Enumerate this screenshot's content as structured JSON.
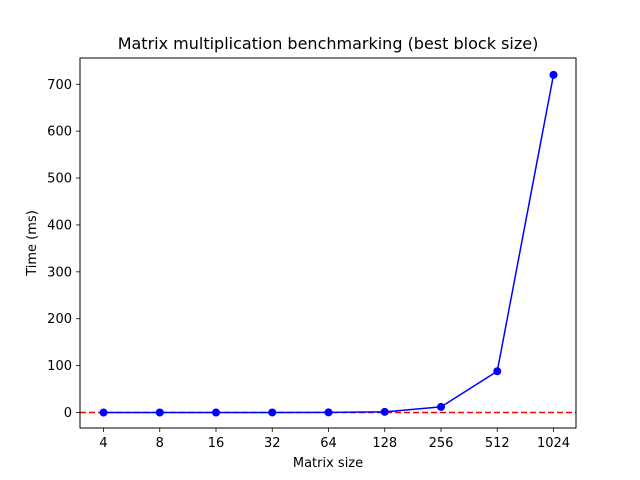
{
  "chart_data": {
    "type": "line",
    "title": "Matrix multiplication benchmarking (best block size)",
    "xlabel": "Matrix size",
    "ylabel": "Time (ms)",
    "categories": [
      "4",
      "8",
      "16",
      "32",
      "64",
      "128",
      "256",
      "512",
      "1024"
    ],
    "yticks": [
      "0",
      "100",
      "200",
      "300",
      "400",
      "500",
      "600",
      "700"
    ],
    "ylim": [
      -33,
      756
    ],
    "series": [
      {
        "values": [
          0.01,
          0.02,
          0.05,
          0.1,
          0.3,
          1.5,
          12,
          88,
          720
        ],
        "color": "#0000ff",
        "marker": "circle",
        "line": "solid"
      }
    ],
    "reference_line": {
      "y": 0,
      "color": "#ff0000",
      "style": "dashed"
    },
    "grid": false,
    "legend": "none"
  }
}
